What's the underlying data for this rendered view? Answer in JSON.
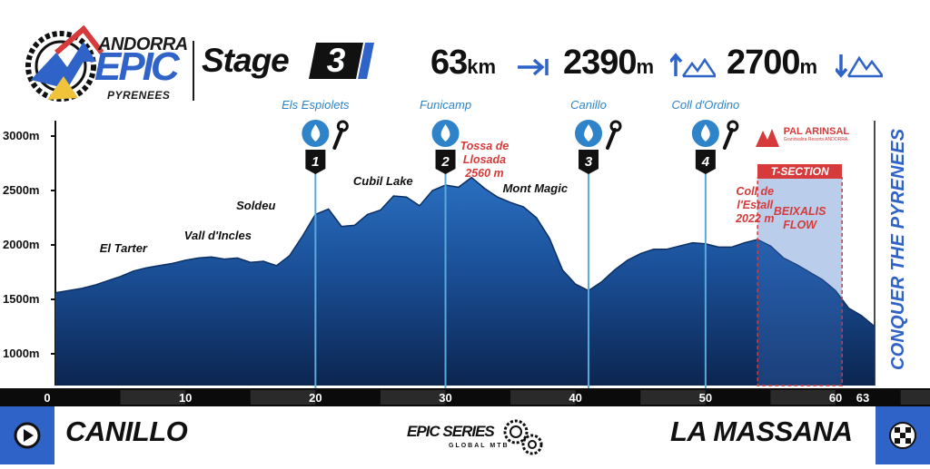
{
  "event": {
    "logo_line1": "ANDORRA",
    "logo_line2": "EPIC",
    "logo_line3": "PYRENEES",
    "stage_label": "Stage",
    "stage_number": "3",
    "tagline": "CONQUER THE PYRENEES",
    "series_logo": "EPIC SERIES",
    "series_sub": "GLOBAL MTB"
  },
  "stats": {
    "distance_value": "63",
    "distance_unit": "km",
    "climb_value": "2390",
    "climb_unit": "m",
    "descent_value": "2700",
    "descent_unit": "m"
  },
  "colors": {
    "brand_blue": "#2f63c8",
    "profile_blue": "#1f5fae",
    "checkpoint_line": "#5aa9dd",
    "accent_red": "#d63a3a",
    "axis_bar": "#0b0b0b"
  },
  "footer": {
    "start": "CANILLO",
    "finish": "LA MASSANA",
    "start_icon": "play-icon",
    "finish_icon": "checkered-flag-icon"
  },
  "chart_data": {
    "type": "area",
    "title": "",
    "xlabel": "",
    "ylabel": "",
    "x_unit": "km",
    "y_unit": "m",
    "xlim": [
      0,
      63
    ],
    "ylim": [
      800,
      3100
    ],
    "grid": false,
    "y_ticks": [
      "1000m",
      "1500m",
      "2000m",
      "2500m",
      "3000m"
    ],
    "x_ticks": [
      "0",
      "10",
      "20",
      "30",
      "40",
      "50",
      "60",
      "63"
    ],
    "profile": [
      {
        "x": 0,
        "y": 1560
      },
      {
        "x": 1,
        "y": 1580
      },
      {
        "x": 2,
        "y": 1600
      },
      {
        "x": 3,
        "y": 1630
      },
      {
        "x": 4,
        "y": 1670
      },
      {
        "x": 5,
        "y": 1710
      },
      {
        "x": 6,
        "y": 1760
      },
      {
        "x": 7,
        "y": 1790
      },
      {
        "x": 8,
        "y": 1810
      },
      {
        "x": 9,
        "y": 1830
      },
      {
        "x": 10,
        "y": 1860
      },
      {
        "x": 11,
        "y": 1880
      },
      {
        "x": 12,
        "y": 1890
      },
      {
        "x": 13,
        "y": 1870
      },
      {
        "x": 14,
        "y": 1880
      },
      {
        "x": 15,
        "y": 1840
      },
      {
        "x": 16,
        "y": 1850
      },
      {
        "x": 17,
        "y": 1810
      },
      {
        "x": 18,
        "y": 1900
      },
      {
        "x": 19,
        "y": 2080
      },
      {
        "x": 20,
        "y": 2280
      },
      {
        "x": 21,
        "y": 2330
      },
      {
        "x": 22,
        "y": 2170
      },
      {
        "x": 23,
        "y": 2180
      },
      {
        "x": 24,
        "y": 2280
      },
      {
        "x": 25,
        "y": 2320
      },
      {
        "x": 26,
        "y": 2450
      },
      {
        "x": 27,
        "y": 2440
      },
      {
        "x": 28,
        "y": 2360
      },
      {
        "x": 29,
        "y": 2500
      },
      {
        "x": 30,
        "y": 2550
      },
      {
        "x": 31,
        "y": 2530
      },
      {
        "x": 32,
        "y": 2620
      },
      {
        "x": 33,
        "y": 2520
      },
      {
        "x": 34,
        "y": 2440
      },
      {
        "x": 35,
        "y": 2390
      },
      {
        "x": 36,
        "y": 2350
      },
      {
        "x": 37,
        "y": 2250
      },
      {
        "x": 38,
        "y": 2060
      },
      {
        "x": 39,
        "y": 1770
      },
      {
        "x": 40,
        "y": 1640
      },
      {
        "x": 41,
        "y": 1580
      },
      {
        "x": 42,
        "y": 1660
      },
      {
        "x": 43,
        "y": 1770
      },
      {
        "x": 44,
        "y": 1860
      },
      {
        "x": 45,
        "y": 1920
      },
      {
        "x": 46,
        "y": 1960
      },
      {
        "x": 47,
        "y": 1960
      },
      {
        "x": 48,
        "y": 1990
      },
      {
        "x": 49,
        "y": 2020
      },
      {
        "x": 50,
        "y": 2010
      },
      {
        "x": 51,
        "y": 1980
      },
      {
        "x": 52,
        "y": 1980
      },
      {
        "x": 53,
        "y": 2020
      },
      {
        "x": 54,
        "y": 2050
      },
      {
        "x": 55,
        "y": 1990
      },
      {
        "x": 56,
        "y": 1880
      },
      {
        "x": 57,
        "y": 1820
      },
      {
        "x": 58,
        "y": 1750
      },
      {
        "x": 59,
        "y": 1680
      },
      {
        "x": 60,
        "y": 1580
      },
      {
        "x": 61,
        "y": 1420
      },
      {
        "x": 62,
        "y": 1350
      },
      {
        "x": 63,
        "y": 1250
      }
    ],
    "checkpoints": [
      {
        "number": "1",
        "km": 20,
        "name": "Els Espiolets",
        "water": true,
        "repair": true
      },
      {
        "number": "2",
        "km": 30,
        "name": "Funicamp",
        "water": true,
        "repair": false
      },
      {
        "number": "3",
        "km": 41,
        "name": "Canillo",
        "water": true,
        "repair": true
      },
      {
        "number": "4",
        "km": 50,
        "name": "Coll d'Ordino",
        "water": true,
        "repair": true
      }
    ],
    "places": [
      {
        "name": "El Tarter",
        "km": 5.5,
        "elev": 1900
      },
      {
        "name": "Vall d'Incles",
        "km": 12,
        "elev": 2020
      },
      {
        "name": "Soldeu",
        "km": 16,
        "elev": 2290
      },
      {
        "name": "Cubil Lake",
        "km": 25,
        "elev": 2520
      },
      {
        "name": "Mont Magic",
        "km": 36.5,
        "elev": 2450
      }
    ],
    "peaks": [
      {
        "name": "Tossa de\nLlosada\n2560 m",
        "km": 33,
        "elev": 2800
      },
      {
        "name": "Coll de\nl'Estall\n2022 m",
        "km": 53.8,
        "elev": 2380
      }
    ],
    "timed_section": {
      "label": "T-SECTION",
      "name": "BEIXALIS\nFLOW",
      "sponsor": "PAL ARINSAL",
      "sponsor_sub": "Grandvalira Resorts ANDORRA",
      "start_km": 54,
      "end_km": 60.5
    }
  }
}
